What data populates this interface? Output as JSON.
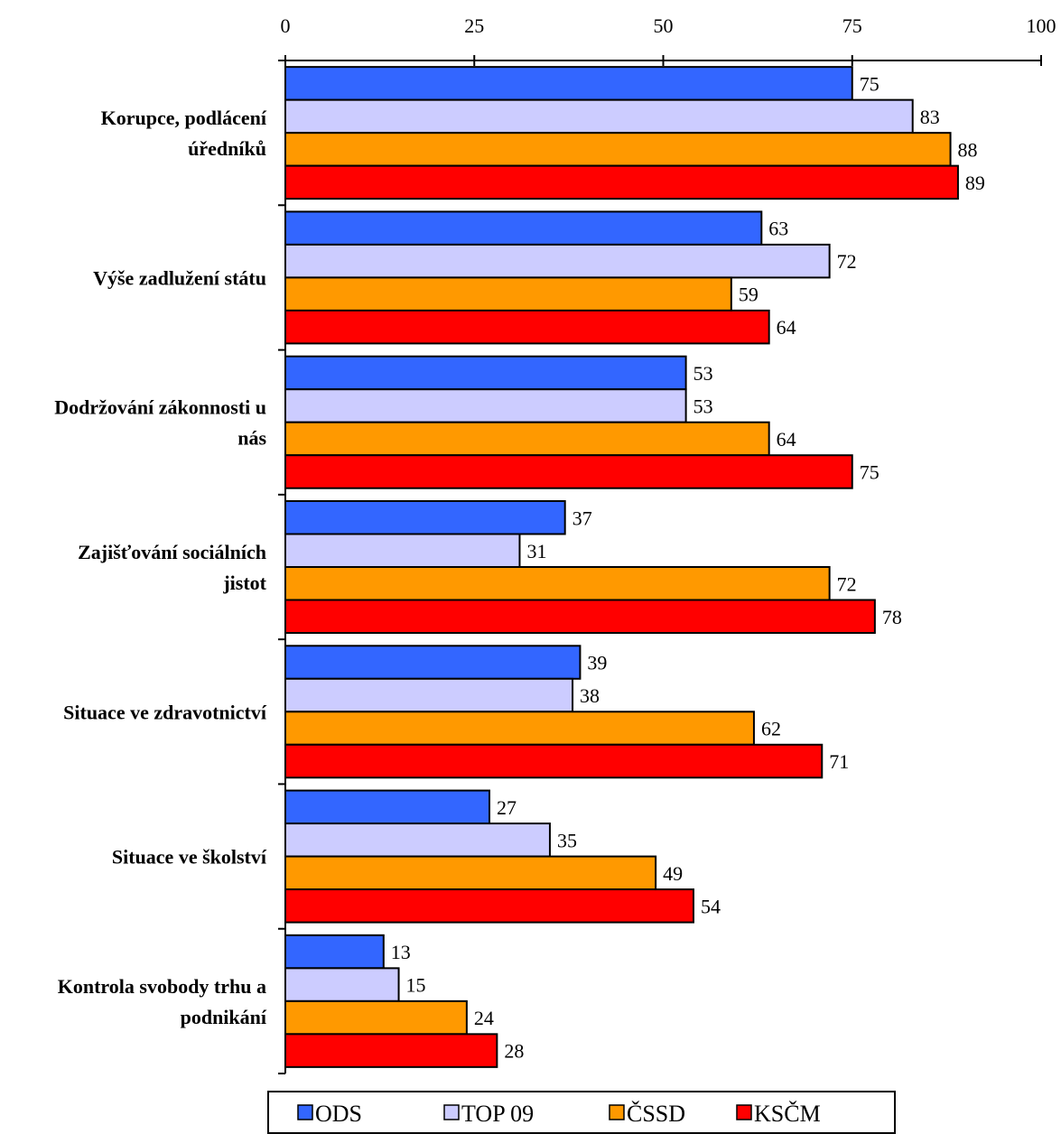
{
  "chart_data": {
    "type": "bar",
    "orientation": "horizontal",
    "title": "",
    "xlabel": "",
    "ylabel": "",
    "xlim": [
      0,
      100
    ],
    "ticks": [
      "0",
      "25",
      "50",
      "75",
      "100"
    ],
    "grid": false,
    "legend_position": "bottom",
    "categories": [
      [
        "Korupce, podlácení",
        "úředníků"
      ],
      [
        "Výše zadlužení státu"
      ],
      [
        "Dodržování zákonnosti u",
        "nás"
      ],
      [
        "Zajišťování sociálních",
        "jistot"
      ],
      [
        "Situace ve zdravotnictví"
      ],
      [
        "Situace ve školství"
      ],
      [
        "Kontrola svobody trhu a",
        "podnikání"
      ]
    ],
    "series": [
      {
        "name": "ODS",
        "color": "#3366ff",
        "values": [
          75,
          63,
          53,
          37,
          39,
          27,
          13
        ]
      },
      {
        "name": "TOP 09",
        "color": "#ccccff",
        "values": [
          83,
          72,
          53,
          31,
          38,
          35,
          15
        ]
      },
      {
        "name": "ČSSD",
        "color": "#ff9900",
        "values": [
          88,
          59,
          64,
          72,
          62,
          49,
          24
        ]
      },
      {
        "name": "KSČM",
        "color": "#ff0000",
        "values": [
          89,
          64,
          75,
          78,
          71,
          54,
          28
        ]
      }
    ]
  }
}
